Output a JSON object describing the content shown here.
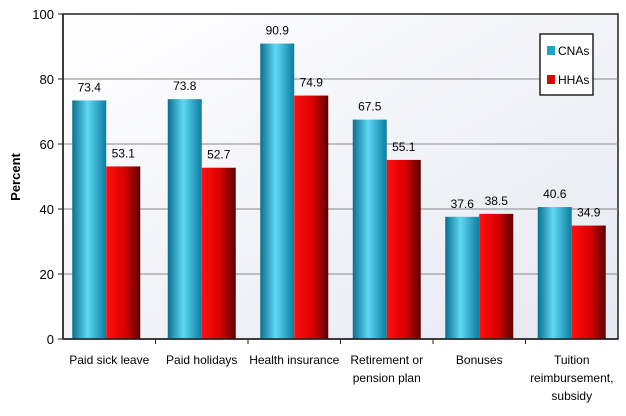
{
  "chart_data": {
    "type": "bar",
    "title": "",
    "xlabel": "",
    "ylabel": "Percent",
    "ylim": [
      0,
      100
    ],
    "yticks": [
      0,
      20,
      40,
      60,
      80,
      100
    ],
    "grid": true,
    "legend_position": "top-right",
    "categories": [
      "Paid sick leave",
      "Paid holidays",
      "Health insurance",
      "Retirement or pension plan",
      "Bonuses",
      "Tuition reimbursement, subsidy"
    ],
    "category_lines": [
      [
        "Paid sick leave"
      ],
      [
        "Paid holidays"
      ],
      [
        "Health insurance"
      ],
      [
        "Retirement or",
        "pension plan"
      ],
      [
        "Bonuses"
      ],
      [
        "Tuition",
        "reimbursement,",
        "subsidy"
      ]
    ],
    "series": [
      {
        "name": "CNAs",
        "color": "#1aa6c8",
        "values": [
          73.4,
          73.8,
          90.9,
          67.5,
          37.6,
          40.6
        ]
      },
      {
        "name": "HHAs",
        "color": "#e00000",
        "values": [
          53.1,
          52.7,
          74.9,
          55.1,
          38.5,
          34.9
        ]
      }
    ]
  }
}
